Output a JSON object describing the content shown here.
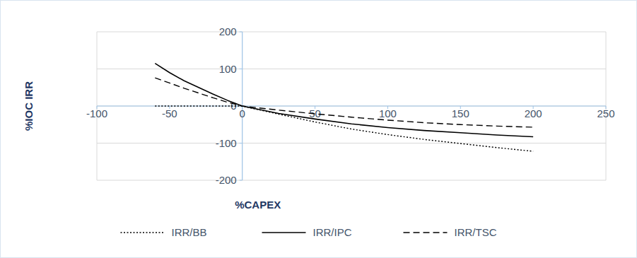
{
  "chart_data": {
    "type": "line",
    "x_label": "%CAPEX",
    "y_label": "%IOC IRR",
    "x": [
      -60,
      -50,
      -40,
      -30,
      -20,
      -10,
      0,
      25,
      50,
      75,
      100,
      125,
      150,
      175,
      200
    ],
    "series": [
      {
        "name": "IRR/BB",
        "color": "#000000",
        "line_style": "dotted",
        "values": [
          0,
          0,
          0,
          0,
          0,
          0,
          0,
          -22,
          -43,
          -62,
          -77,
          -90,
          -101,
          -112,
          -122
        ]
      },
      {
        "name": "IRR/IPC",
        "color": "#000000",
        "line_style": "solid",
        "values": [
          115,
          90,
          68,
          50,
          32,
          15,
          0,
          -20,
          -35,
          -48,
          -58,
          -66,
          -72,
          -78,
          -83
        ]
      },
      {
        "name": "IRR/TSC",
        "color": "#000000",
        "line_style": "dashed",
        "values": [
          76,
          62,
          48,
          35,
          22,
          10,
          0,
          -11,
          -21,
          -30,
          -38,
          -45,
          -50,
          -54,
          -57
        ]
      }
    ],
    "xlim": [
      -100,
      250
    ],
    "xticks": [
      -100,
      -50,
      0,
      50,
      100,
      150,
      200,
      250
    ],
    "ylim": [
      -200,
      200
    ],
    "yticks": [
      -200,
      -100,
      0,
      100,
      200
    ],
    "grid": true,
    "legend": "bottom"
  }
}
